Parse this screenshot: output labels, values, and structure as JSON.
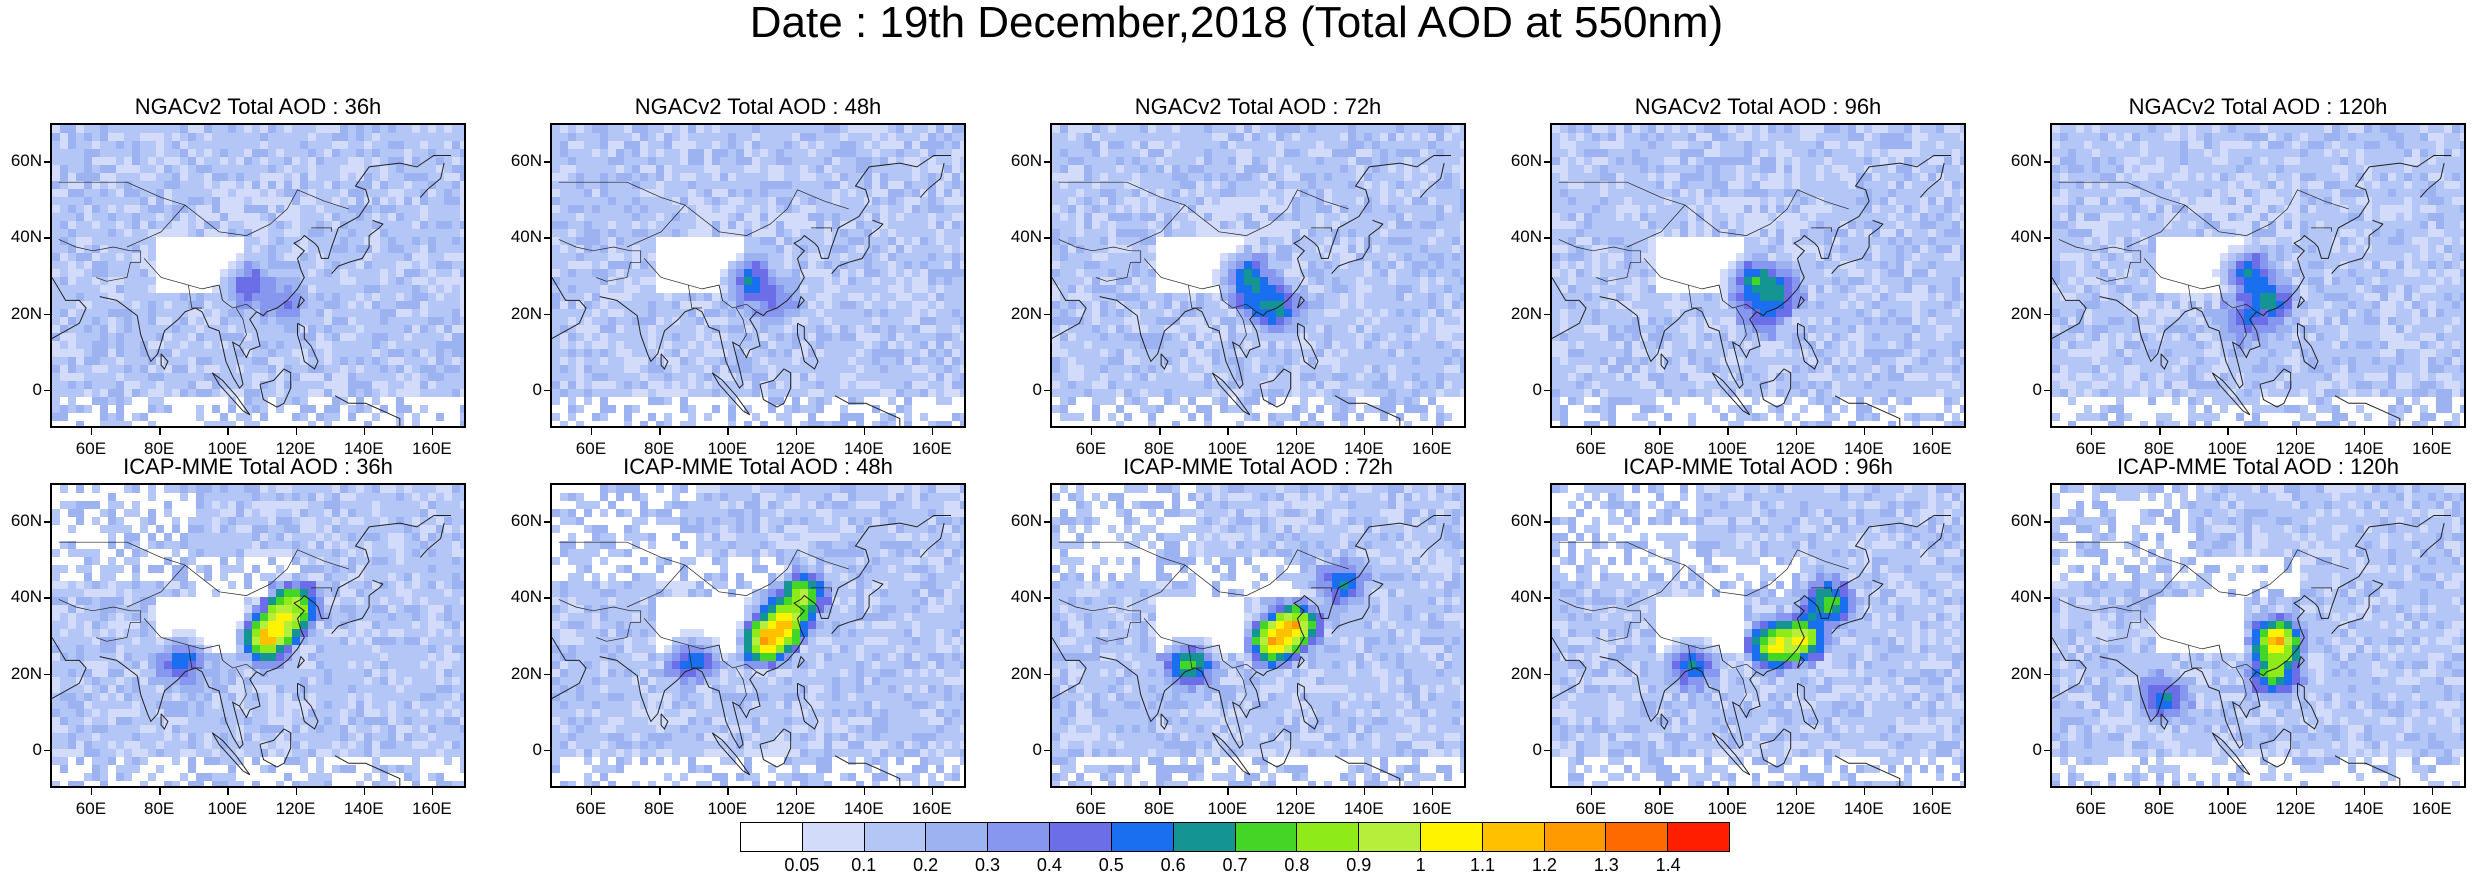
{
  "title": "Date : 19th December,2018 (Total AOD at 550nm)",
  "lat_labels": [
    "60N",
    "40N",
    "20N",
    "0"
  ],
  "lon_labels": [
    "60E",
    "80E",
    "100E",
    "120E",
    "140E",
    "160E"
  ],
  "rows": [
    {
      "model": "NGACv2",
      "panels": [
        {
          "title": "NGACv2 Total AOD : 36h",
          "hotspots": [
            {
              "lon": 104,
              "lat": 29,
              "level": 6
            },
            {
              "lon": 115,
              "lat": 24,
              "level": 5
            }
          ]
        },
        {
          "title": "NGACv2 Total AOD : 48h",
          "hotspots": [
            {
              "lon": 105,
              "lat": 30,
              "level": 7
            },
            {
              "lon": 112,
              "lat": 25,
              "level": 5
            }
          ]
        },
        {
          "title": "NGACv2 Total AOD : 72h",
          "hotspots": [
            {
              "lon": 104,
              "lat": 31,
              "level": 8
            },
            {
              "lon": 108,
              "lat": 25,
              "level": 7
            },
            {
              "lon": 113,
              "lat": 23,
              "level": 7
            }
          ]
        },
        {
          "title": "NGACv2 Total AOD : 96h",
          "hotspots": [
            {
              "lon": 106,
              "lat": 30,
              "level": 8
            },
            {
              "lon": 112,
              "lat": 27,
              "level": 8
            },
            {
              "lon": 109,
              "lat": 22,
              "level": 6
            }
          ]
        },
        {
          "title": "NGACv2 Total AOD : 120h",
          "hotspots": [
            {
              "lon": 104,
              "lat": 32,
              "level": 7
            },
            {
              "lon": 110,
              "lat": 25,
              "level": 8
            },
            {
              "lon": 104,
              "lat": 20,
              "level": 6
            }
          ]
        }
      ]
    },
    {
      "model": "ICAP-MME",
      "panels": [
        {
          "title": "ICAP-MME Total AOD : 36h",
          "hotspots": [
            {
              "lon": 110,
              "lat": 31,
              "level": 14
            },
            {
              "lon": 115,
              "lat": 36,
              "level": 12
            },
            {
              "lon": 118,
              "lat": 40,
              "level": 10
            },
            {
              "lon": 85,
              "lat": 25,
              "level": 7
            }
          ]
        },
        {
          "title": "ICAP-MME Total AOD : 48h",
          "hotspots": [
            {
              "lon": 110,
              "lat": 30,
              "level": 14
            },
            {
              "lon": 115,
              "lat": 35,
              "level": 13
            },
            {
              "lon": 120,
              "lat": 42,
              "level": 11
            },
            {
              "lon": 88,
              "lat": 25,
              "level": 7
            }
          ]
        },
        {
          "title": "ICAP-MME Total AOD : 72h",
          "hotspots": [
            {
              "lon": 112,
              "lat": 30,
              "level": 14
            },
            {
              "lon": 118,
              "lat": 34,
              "level": 13
            },
            {
              "lon": 87,
              "lat": 24,
              "level": 9
            },
            {
              "lon": 132,
              "lat": 45,
              "level": 7
            }
          ]
        },
        {
          "title": "ICAP-MME Total AOD : 96h",
          "hotspots": [
            {
              "lon": 112,
              "lat": 29,
              "level": 12
            },
            {
              "lon": 120,
              "lat": 31,
              "level": 12
            },
            {
              "lon": 128,
              "lat": 40,
              "level": 9
            },
            {
              "lon": 88,
              "lat": 24,
              "level": 7
            }
          ]
        },
        {
          "title": "ICAP-MME Total AOD : 120h",
          "hotspots": [
            {
              "lon": 113,
              "lat": 30,
              "level": 14
            },
            {
              "lon": 112,
              "lat": 22,
              "level": 10
            },
            {
              "lon": 80,
              "lat": 15,
              "level": 7
            }
          ]
        }
      ]
    }
  ],
  "colorbar": {
    "labels": [
      "0.05",
      "0.1",
      "0.2",
      "0.3",
      "0.4",
      "0.5",
      "0.6",
      "0.7",
      "0.8",
      "0.9",
      "1",
      "1.1",
      "1.2",
      "1.3",
      "1.4"
    ],
    "colors": [
      "#ffffff",
      "#d2dcfa",
      "#b4c6f5",
      "#9cb2f1",
      "#8796ee",
      "#6b6ee6",
      "#1a6ef0",
      "#159494",
      "#44d626",
      "#8eea18",
      "#b6ee3c",
      "#fff300",
      "#ffc000",
      "#ff9a00",
      "#ff6a00",
      "#ff1f00"
    ]
  }
}
